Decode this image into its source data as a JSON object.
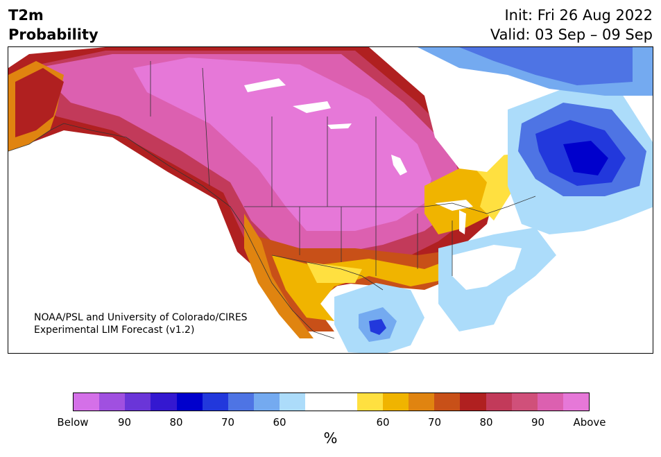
{
  "title": {
    "variable": "T2m",
    "kind": "Probability",
    "init": "Init: Fri 26 Aug 2022",
    "valid": "Valid: 03 Sep – 09 Sep"
  },
  "credit": {
    "line1": "NOAA/PSL and University of Colorado/CIRES",
    "line2": "Experimental LIM Forecast (v1.2)"
  },
  "colorbar": {
    "colors": [
      "#d470e8",
      "#a050e0",
      "#6a35d8",
      "#3418d0",
      "#0000cc",
      "#2238dc",
      "#4e74e4",
      "#74aaf0",
      "#acdcfa",
      "#ffffff",
      "#ffffff",
      "#ffe040",
      "#f0b400",
      "#e08410",
      "#c85018",
      "#b02020",
      "#c23a5a",
      "#d0507a",
      "#dc60b0",
      "#e678d8"
    ],
    "ticks": [
      "Below",
      "90",
      "80",
      "70",
      "60",
      "60",
      "70",
      "80",
      "90",
      "Above"
    ],
    "unit": "%"
  },
  "map": {
    "region": "North America",
    "palette": {
      "above_max": "#e678d8",
      "above_90": "#dc60b0",
      "above_85": "#d0507a",
      "above_80": "#c23a5a",
      "above_75": "#b02020",
      "above_70": "#c85018",
      "above_65": "#e08410",
      "above_60": "#f0b400",
      "above_55": "#ffe040",
      "neutral": "#ffffff",
      "below_55": "#acdcfa",
      "below_60": "#74aaf0",
      "below_65": "#4e74e4",
      "below_70": "#2238dc",
      "below_75": "#0000cc"
    }
  }
}
